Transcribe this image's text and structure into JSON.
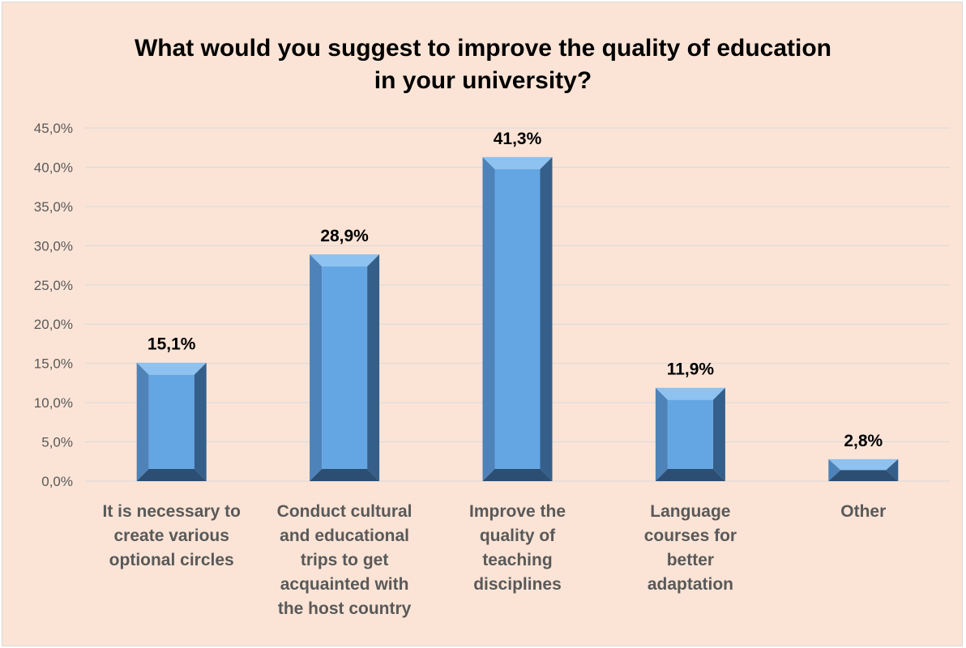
{
  "chart_data": {
    "type": "bar",
    "title_lines": [
      "What would you suggest to improve the quality of education",
      "in your university?"
    ],
    "xlabel": "",
    "ylabel": "",
    "ylim": [
      0,
      45
    ],
    "y_ticks": [
      "0,0%",
      "5,0%",
      "10,0%",
      "15,0%",
      "20,0%",
      "25,0%",
      "30,0%",
      "35,0%",
      "40,0%",
      "45,0%"
    ],
    "grid": true,
    "legend": "none",
    "categories": [
      [
        "It is necessary to",
        "create various",
        "optional circles"
      ],
      [
        "Conduct cultural",
        "and educational",
        "trips to get",
        "acquainted with",
        "the host country"
      ],
      [
        "Improve the",
        "quality of",
        "teaching",
        "disciplines"
      ],
      [
        "Language",
        "courses for",
        "better",
        "adaptation"
      ],
      [
        "Other"
      ]
    ],
    "values": [
      15.1,
      28.9,
      41.3,
      11.9,
      2.8
    ],
    "data_labels": [
      "15,1%",
      "28,9%",
      "41,3%",
      "11,9%",
      "2,8%"
    ],
    "colors": {
      "background": "#fbe4d6",
      "bar_face": "#64a6e3",
      "bar_top": "#8ec2f0",
      "bar_left": "#4d83b9",
      "bar_right": "#345f8a",
      "bar_bottom": "#2b4e72",
      "gridline": "#d9d9d9"
    }
  }
}
